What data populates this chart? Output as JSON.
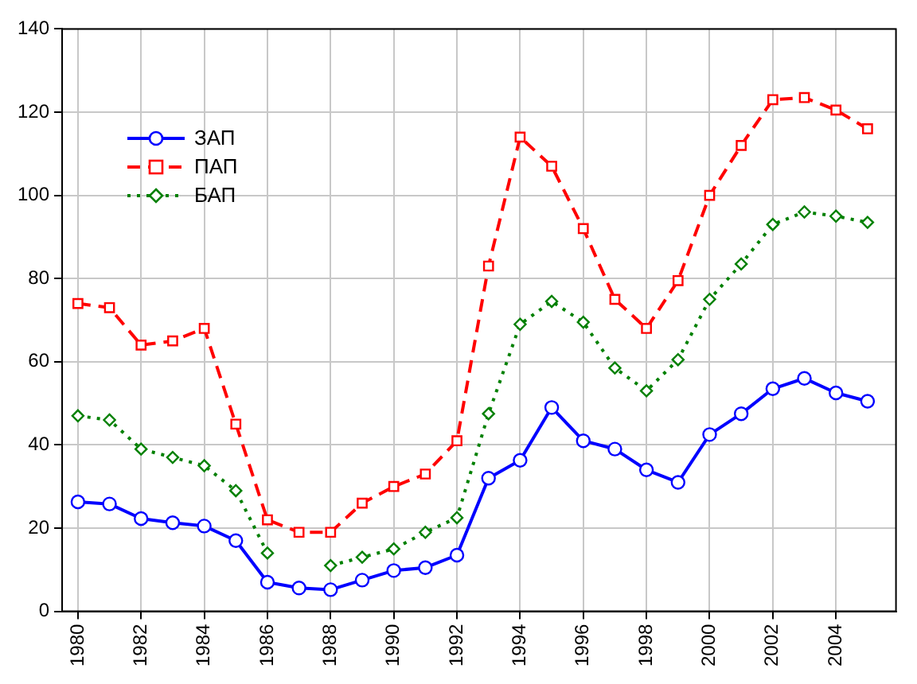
{
  "chart_data": {
    "type": "line",
    "x": [
      1980,
      1981,
      1982,
      1983,
      1984,
      1985,
      1986,
      1987,
      1988,
      1989,
      1990,
      1991,
      1992,
      1993,
      1994,
      1995,
      1996,
      1997,
      1998,
      1999,
      2000,
      2001,
      2002,
      2003,
      2004,
      2005
    ],
    "series": [
      {
        "name": "ЗАП",
        "color": "#0000ff",
        "marker": "circle",
        "line_style": "solid",
        "values": [
          26.3,
          25.8,
          22.3,
          21.3,
          20.5,
          17,
          7,
          5.6,
          5.2,
          7.5,
          9.8,
          10.5,
          13.5,
          32,
          36.3,
          49,
          41,
          39,
          34,
          31,
          42.5,
          47.5,
          53.5,
          56,
          52.5,
          50.5
        ]
      },
      {
        "name": "ПАП",
        "color": "#ff0000",
        "marker": "square",
        "line_style": "dashed",
        "values": [
          74,
          73,
          64,
          65,
          68,
          45,
          22,
          19,
          19,
          26,
          30,
          33,
          41,
          83,
          114,
          107,
          92,
          75,
          68,
          79.5,
          100,
          112,
          123,
          123.5,
          120.5,
          116
        ]
      },
      {
        "name": "БАП",
        "color": "#008000",
        "marker": "diamond",
        "line_style": "dotted",
        "values": [
          47,
          46,
          39,
          37,
          35,
          29,
          14,
          null,
          11,
          13,
          15,
          19,
          22.5,
          47.5,
          69,
          74.5,
          69.5,
          58.5,
          53,
          60.5,
          75,
          83.5,
          93,
          96,
          95,
          93.5
        ]
      }
    ],
    "xlim": [
      1979.5,
      2005.9
    ],
    "xticks": [
      1980,
      1982,
      1984,
      1986,
      1988,
      1990,
      1992,
      1994,
      1996,
      1998,
      2000,
      2002,
      2004
    ],
    "ylim": [
      0,
      140
    ],
    "yticks": [
      0,
      20,
      40,
      60,
      80,
      100,
      120,
      140
    ],
    "grid": true,
    "legend": "top left"
  }
}
